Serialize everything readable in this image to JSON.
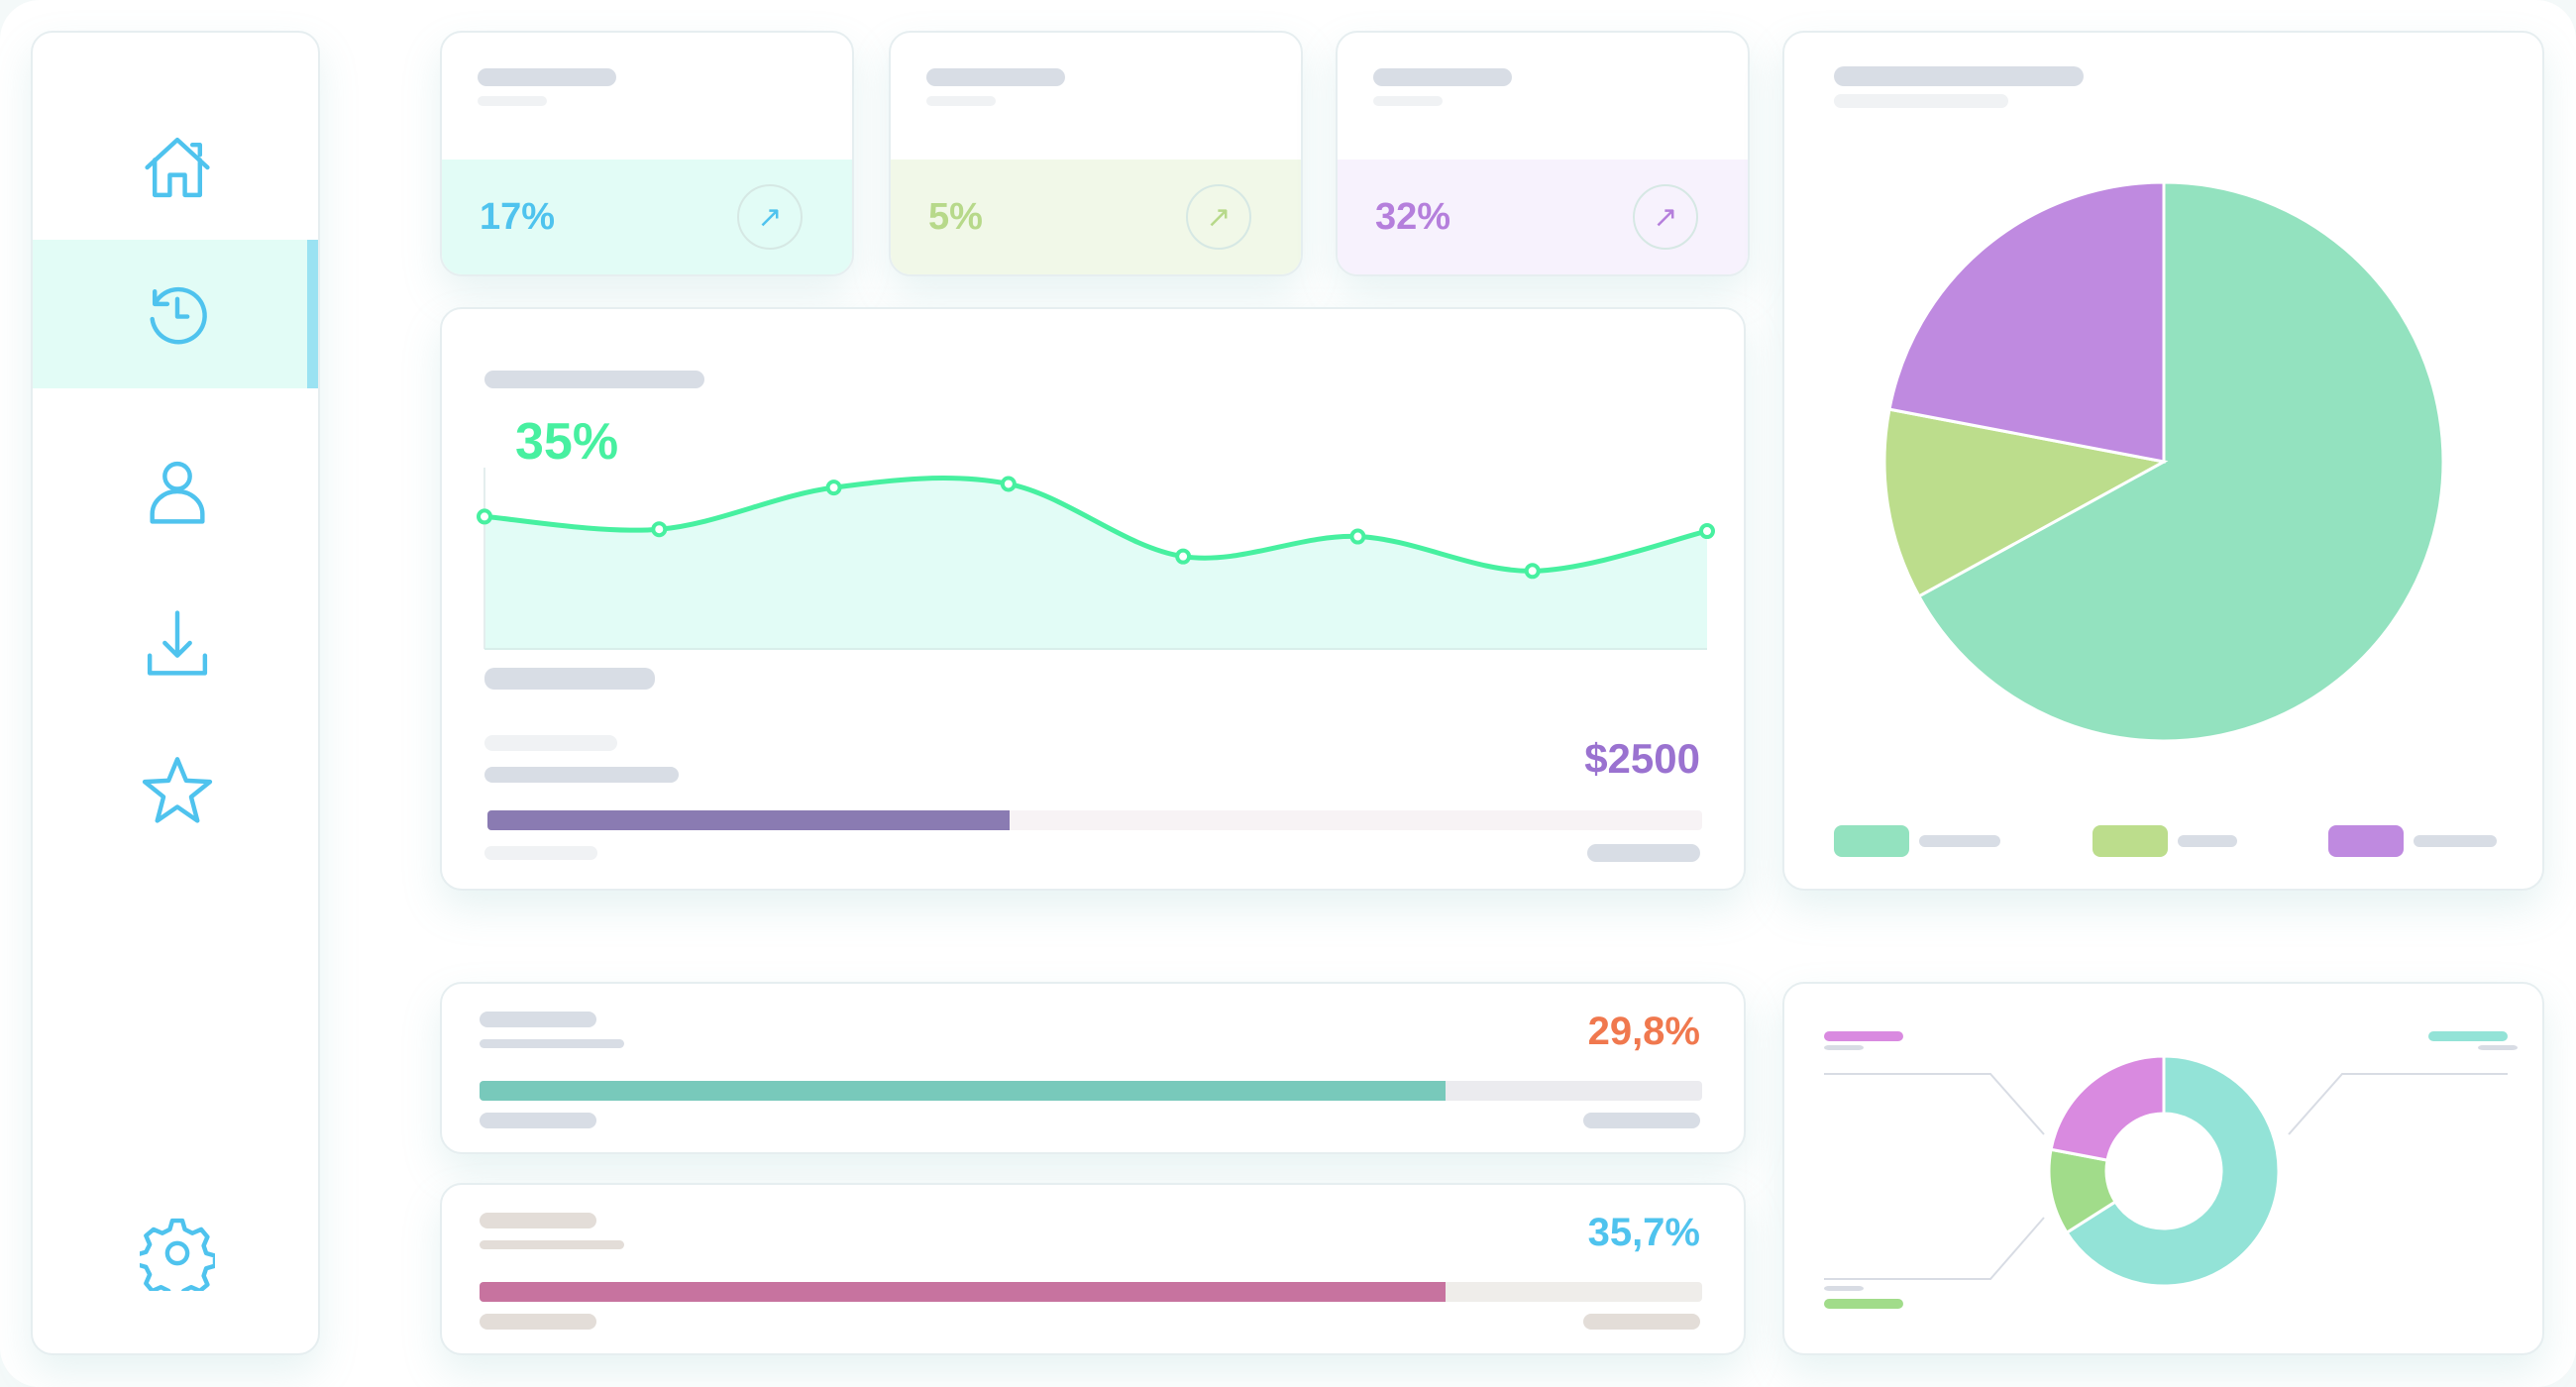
{
  "colors": {
    "accent": "#4fc3ee",
    "green": "#47f0a0",
    "purple": "#9a72d0"
  },
  "sidebar": {
    "items": [
      {
        "icon": "home-icon",
        "active": false
      },
      {
        "icon": "history-icon",
        "active": true
      },
      {
        "icon": "user-icon",
        "active": false
      },
      {
        "icon": "download-icon",
        "active": false
      },
      {
        "icon": "star-icon",
        "active": false
      },
      {
        "icon": "gear-icon",
        "active": false
      }
    ]
  },
  "stats": [
    {
      "value": "17%",
      "color": "#4fc3ee",
      "bg": "#e2fcf6",
      "arrow_icon": "arrow-up-right-icon"
    },
    {
      "value": "5%",
      "color": "#b7d98a",
      "bg": "#f1f8e8",
      "arrow_icon": "arrow-up-right-icon"
    },
    {
      "value": "32%",
      "color": "#b57fdc",
      "bg": "#f7f2fd",
      "arrow_icon": "arrow-up-right-icon"
    }
  ],
  "line_card": {
    "value": "35%",
    "amount": "$2500",
    "progress": 43
  },
  "chart_data": [
    {
      "type": "area",
      "values": [
        73,
        66,
        89,
        91,
        51,
        62,
        43,
        65
      ],
      "line_color": "#47f0a0",
      "fill_color": "#e2fcf6"
    },
    {
      "type": "pie",
      "values": [
        67,
        11,
        22
      ],
      "colors": [
        "#93e2bf",
        "#bcdd8c",
        "#bf8ae0"
      ]
    },
    {
      "type": "pie",
      "donut": true,
      "values": [
        66,
        12,
        22
      ],
      "colors": [
        "#93e3d7",
        "#a1dc8a",
        "#d98ae0"
      ]
    }
  ],
  "bars": [
    {
      "value": "29,8%",
      "color": "#f0784e",
      "fill": "#78c9bb",
      "track": "#ebebef",
      "progress": 79
    },
    {
      "value": "35,7%",
      "color": "#4fc3ee",
      "fill": "#c7739f",
      "track": "#efedea",
      "progress": 79
    }
  ]
}
